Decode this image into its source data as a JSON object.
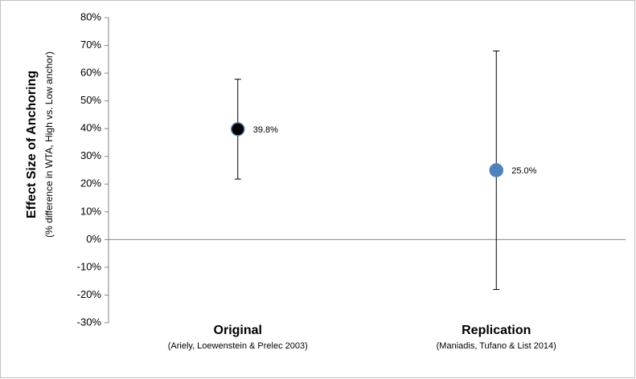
{
  "chart_data": {
    "type": "dot",
    "y_label": "Effect Size of Anchoring",
    "y_sublabel": "(% difference in WTA, High vs. Low anchor)",
    "categories": [
      "Original",
      "Replication"
    ],
    "category_notes": [
      "(Ariely, Loewenstein & Prelec 2003)",
      "(Maniadis, Tufano & List 2014)"
    ],
    "values": [
      39.8,
      25.0
    ],
    "value_labels": [
      "39.8%",
      "25.0%"
    ],
    "errors": [
      18,
      43
    ],
    "colors": [
      "#000000",
      "#4f81bd"
    ],
    "ylim": [
      -30,
      80
    ],
    "yticks": [
      {
        "value": -30,
        "label": "-30%"
      },
      {
        "value": -20,
        "label": "-20%"
      },
      {
        "value": -10,
        "label": "-10%"
      },
      {
        "value": 0,
        "label": "0%"
      },
      {
        "value": 10,
        "label": "10%"
      },
      {
        "value": 20,
        "label": "20%"
      },
      {
        "value": 30,
        "label": "30%"
      },
      {
        "value": 40,
        "label": "40%"
      },
      {
        "value": 50,
        "label": "50%"
      },
      {
        "value": 60,
        "label": "60%"
      },
      {
        "value": 70,
        "label": "70%"
      },
      {
        "value": 80,
        "label": "80%"
      }
    ]
  }
}
